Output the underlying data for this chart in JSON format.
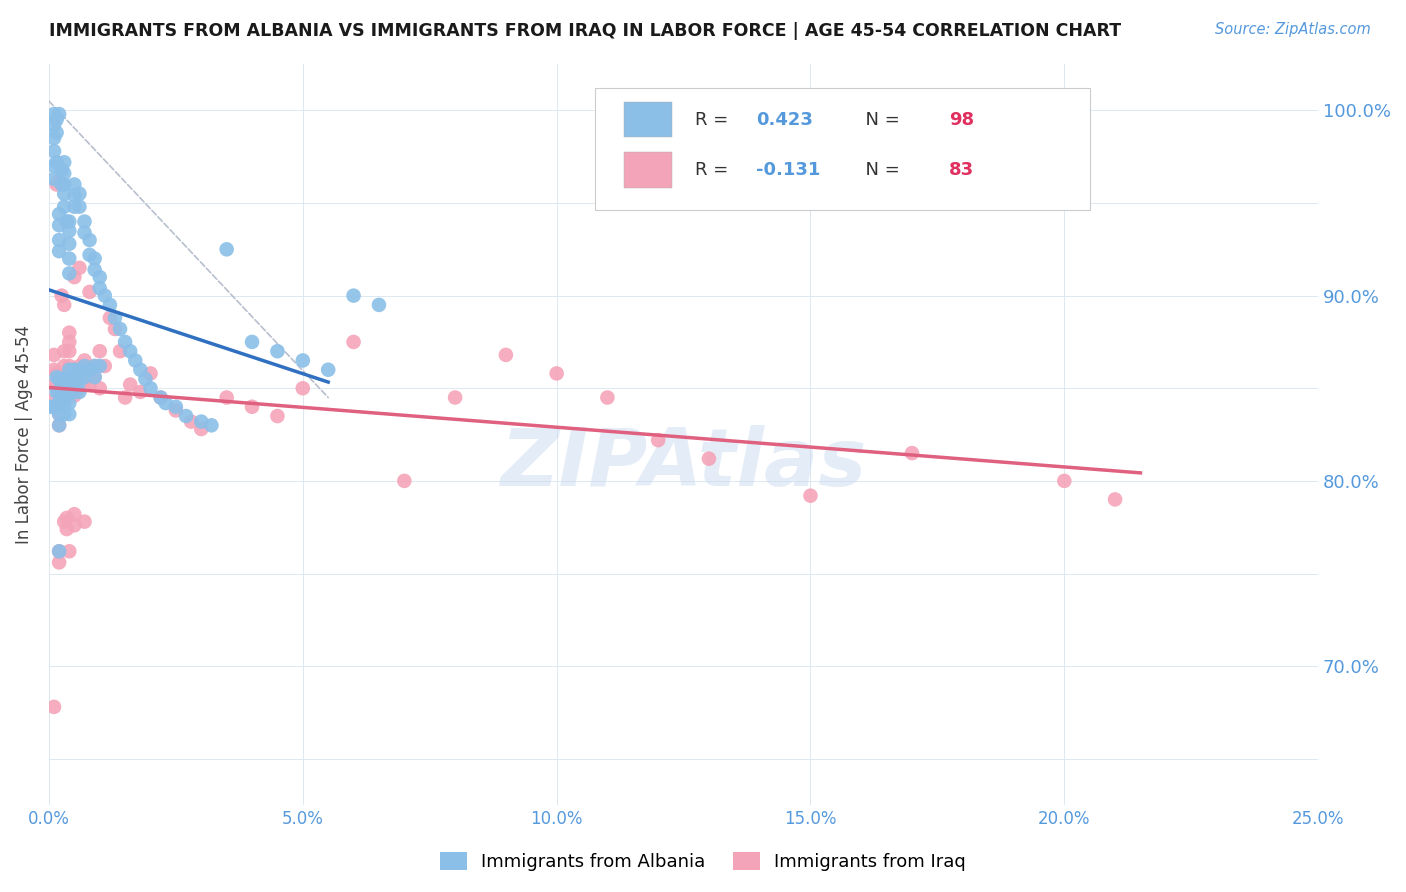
{
  "title": "IMMIGRANTS FROM ALBANIA VS IMMIGRANTS FROM IRAQ IN LABOR FORCE | AGE 45-54 CORRELATION CHART",
  "source": "Source: ZipAtlas.com",
  "ylabel_label": "In Labor Force | Age 45-54",
  "xlim": [
    0.0,
    0.25
  ],
  "ylim": [
    0.625,
    1.025
  ],
  "albania_color": "#8bbfe8",
  "iraq_color": "#f4a4b8",
  "albania_line_color": "#3070c0",
  "iraq_line_color": "#e06080",
  "diagonal_color": "#b0b8c8",
  "R_albania": 0.423,
  "N_albania": 98,
  "R_iraq": -0.131,
  "N_iraq": 83,
  "legend_label_albania": "Immigrants from Albania",
  "legend_label_iraq": "Immigrants from Iraq",
  "tick_color": "#5599dd",
  "right_yticks": [
    0.7,
    0.8,
    0.9,
    1.0
  ],
  "right_ytick_labels": [
    "70.0%",
    "80.0%",
    "90.0%",
    "100.0%"
  ],
  "xtick_vals": [
    0.0,
    0.05,
    0.1,
    0.15,
    0.2,
    0.25
  ],
  "xtick_labels": [
    "0.0%",
    "5.0%",
    "10.0%",
    "15.0%",
    "20.0%",
    "25.0%"
  ],
  "albania_x": [
    0.0005,
    0.001,
    0.001,
    0.001,
    0.001,
    0.001,
    0.001,
    0.001,
    0.0015,
    0.0015,
    0.0015,
    0.0015,
    0.0015,
    0.002,
    0.002,
    0.002,
    0.002,
    0.002,
    0.002,
    0.002,
    0.002,
    0.002,
    0.002,
    0.002,
    0.0025,
    0.0025,
    0.0025,
    0.0025,
    0.0025,
    0.003,
    0.003,
    0.003,
    0.003,
    0.003,
    0.003,
    0.003,
    0.003,
    0.003,
    0.0035,
    0.0035,
    0.004,
    0.004,
    0.004,
    0.004,
    0.004,
    0.004,
    0.004,
    0.004,
    0.004,
    0.004,
    0.005,
    0.005,
    0.005,
    0.005,
    0.005,
    0.005,
    0.006,
    0.006,
    0.006,
    0.006,
    0.006,
    0.007,
    0.007,
    0.007,
    0.007,
    0.008,
    0.008,
    0.008,
    0.009,
    0.009,
    0.009,
    0.009,
    0.01,
    0.01,
    0.01,
    0.011,
    0.012,
    0.013,
    0.014,
    0.015,
    0.016,
    0.017,
    0.018,
    0.019,
    0.02,
    0.022,
    0.023,
    0.025,
    0.027,
    0.03,
    0.032,
    0.035,
    0.04,
    0.045,
    0.05,
    0.055,
    0.06,
    0.065
  ],
  "albania_y": [
    0.84,
    0.998,
    0.992,
    0.985,
    0.978,
    0.97,
    0.963,
    0.84,
    0.995,
    0.988,
    0.972,
    0.856,
    0.848,
    0.998,
    0.944,
    0.938,
    0.93,
    0.924,
    0.855,
    0.848,
    0.842,
    0.836,
    0.83,
    0.762,
    0.968,
    0.96,
    0.855,
    0.848,
    0.842,
    0.972,
    0.966,
    0.96,
    0.955,
    0.948,
    0.855,
    0.848,
    0.842,
    0.836,
    0.94,
    0.855,
    0.94,
    0.935,
    0.928,
    0.92,
    0.912,
    0.86,
    0.854,
    0.848,
    0.842,
    0.836,
    0.96,
    0.954,
    0.948,
    0.86,
    0.854,
    0.848,
    0.955,
    0.948,
    0.86,
    0.854,
    0.848,
    0.94,
    0.934,
    0.862,
    0.856,
    0.93,
    0.922,
    0.86,
    0.92,
    0.914,
    0.862,
    0.856,
    0.91,
    0.904,
    0.862,
    0.9,
    0.895,
    0.888,
    0.882,
    0.875,
    0.87,
    0.865,
    0.86,
    0.855,
    0.85,
    0.845,
    0.842,
    0.84,
    0.835,
    0.832,
    0.83,
    0.925,
    0.875,
    0.87,
    0.865,
    0.86,
    0.9,
    0.895
  ],
  "iraq_x": [
    0.001,
    0.001,
    0.001,
    0.001,
    0.001,
    0.0015,
    0.0015,
    0.0015,
    0.002,
    0.002,
    0.002,
    0.002,
    0.002,
    0.002,
    0.002,
    0.002,
    0.0025,
    0.0025,
    0.003,
    0.003,
    0.003,
    0.003,
    0.003,
    0.003,
    0.003,
    0.0035,
    0.0035,
    0.004,
    0.004,
    0.004,
    0.004,
    0.004,
    0.004,
    0.004,
    0.005,
    0.005,
    0.005,
    0.005,
    0.005,
    0.005,
    0.006,
    0.006,
    0.006,
    0.006,
    0.007,
    0.007,
    0.007,
    0.007,
    0.008,
    0.008,
    0.008,
    0.009,
    0.009,
    0.01,
    0.01,
    0.011,
    0.012,
    0.013,
    0.014,
    0.015,
    0.016,
    0.018,
    0.02,
    0.022,
    0.025,
    0.028,
    0.03,
    0.035,
    0.04,
    0.045,
    0.05,
    0.06,
    0.07,
    0.08,
    0.09,
    0.1,
    0.11,
    0.12,
    0.13,
    0.15,
    0.17,
    0.2,
    0.21
  ],
  "iraq_y": [
    0.868,
    0.86,
    0.852,
    0.844,
    0.678,
    0.96,
    0.858,
    0.85,
    0.962,
    0.855,
    0.848,
    0.842,
    0.836,
    0.83,
    0.762,
    0.756,
    0.9,
    0.855,
    0.895,
    0.87,
    0.862,
    0.856,
    0.85,
    0.844,
    0.778,
    0.78,
    0.774,
    0.88,
    0.875,
    0.87,
    0.862,
    0.856,
    0.85,
    0.762,
    0.91,
    0.858,
    0.852,
    0.846,
    0.782,
    0.776,
    0.915,
    0.862,
    0.856,
    0.85,
    0.865,
    0.858,
    0.852,
    0.778,
    0.902,
    0.858,
    0.852,
    0.862,
    0.856,
    0.87,
    0.85,
    0.862,
    0.888,
    0.882,
    0.87,
    0.845,
    0.852,
    0.848,
    0.858,
    0.845,
    0.838,
    0.832,
    0.828,
    0.845,
    0.84,
    0.835,
    0.85,
    0.875,
    0.8,
    0.845,
    0.868,
    0.858,
    0.845,
    0.822,
    0.812,
    0.792,
    0.815,
    0.8,
    0.79
  ]
}
